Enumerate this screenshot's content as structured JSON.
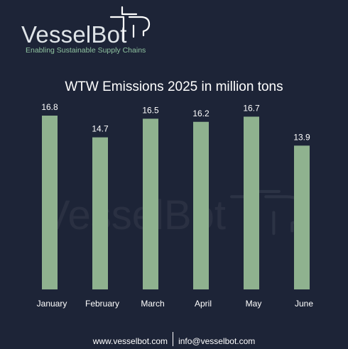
{
  "logo": {
    "brand": "VesselBot",
    "tagline": "Enabling Sustainable Supply Chains",
    "mark_icon": "vesselbot-mark-icon"
  },
  "footer": {
    "website": "www.vesselbot.com",
    "email": "info@vesselbot.com"
  },
  "colors": {
    "background": "#1d2437",
    "bar": "#8fb28f",
    "accent": "#8fc3a0"
  },
  "chart_data": {
    "type": "bar",
    "title": "WTW Emissions 2025 in million tons",
    "categories": [
      "January",
      "February",
      "March",
      "April",
      "May",
      "June"
    ],
    "values": [
      16.8,
      14.7,
      16.5,
      16.2,
      16.7,
      13.9
    ],
    "data_labels": [
      "16.8",
      "14.7",
      "16.5",
      "16.2",
      "16.7",
      "13.9"
    ],
    "ylim": [
      0,
      16.8
    ],
    "grid": false,
    "legend": "none"
  }
}
